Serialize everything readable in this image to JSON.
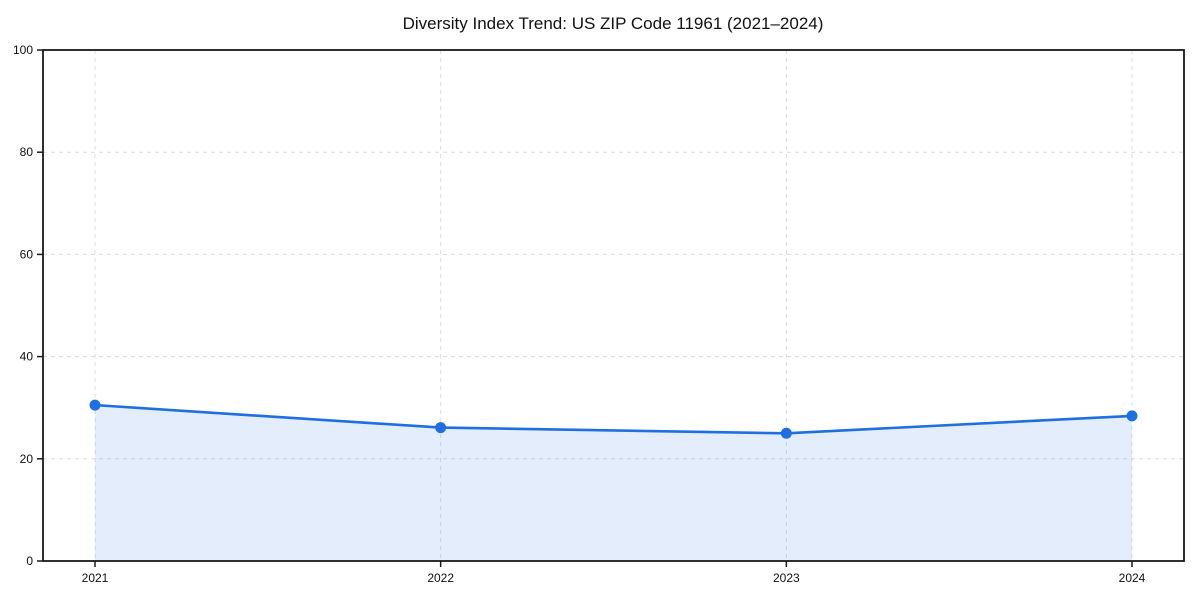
{
  "title": "Diversity Index Trend: US ZIP Code 11961 (2021–2024)",
  "chart_data": {
    "type": "area",
    "title": "Diversity Index Trend: US ZIP Code 11961 (2021–2024)",
    "x": [
      2021,
      2022,
      2023,
      2024
    ],
    "xtick_labels": [
      "2021",
      "2022",
      "2023",
      "2024"
    ],
    "series": [
      {
        "name": "Diversity Index",
        "values": [
          30.5,
          26.1,
          25.0,
          28.4
        ]
      }
    ],
    "xlabel": "",
    "ylabel": "",
    "ylim": [
      0,
      100
    ],
    "yticks": [
      0,
      20,
      40,
      60,
      80,
      100
    ],
    "grid": true,
    "grid_style": "dashed",
    "legend": "none",
    "colors": {
      "line": "#1f6fe0",
      "marker": "#1f6fe0",
      "fill": "#1f6fe0",
      "fill_opacity": 0.12,
      "grid": "#dcdcdc",
      "spine": "#1a1a1a",
      "text": "#111111",
      "background": "#ffffff"
    }
  }
}
